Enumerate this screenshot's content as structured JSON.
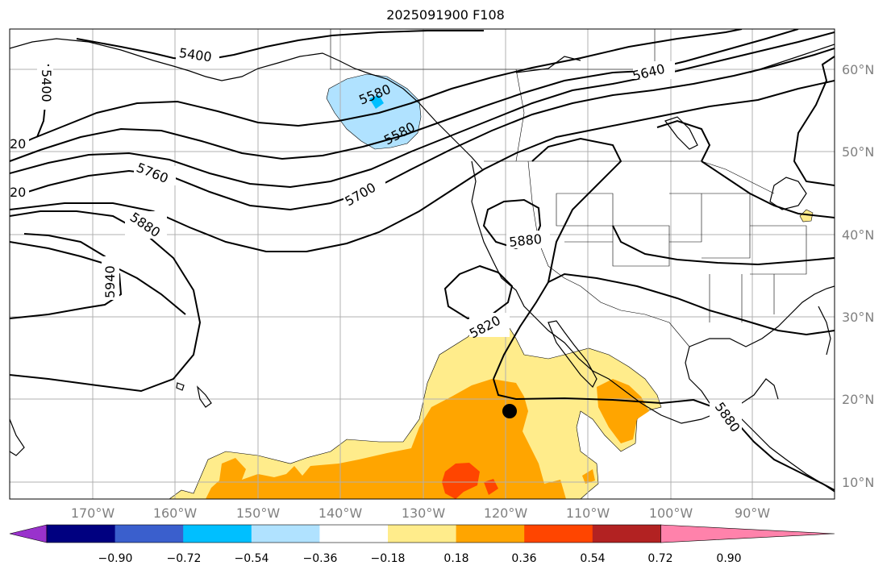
{
  "title": "2025091900 F108",
  "map": {
    "lon_labels": [
      "170°W",
      "160°W",
      "150°W",
      "140°W",
      "130°W",
      "120°W",
      "110°W",
      "100°W",
      "90°W"
    ],
    "lat_labels": [
      "60°N",
      "50°N",
      "40°N",
      "30°N",
      "20°N",
      "10°N"
    ],
    "contour_labels": [
      "5400",
      "5400",
      "5640",
      "5580",
      "5580",
      "20",
      "20",
      "5760",
      "5700",
      "5880",
      "5940",
      "5880",
      "5820",
      "5880"
    ],
    "marker": "storm-center-dot"
  },
  "colorbar": {
    "ticks": [
      "−0.90",
      "−0.72",
      "−0.54",
      "−0.36",
      "−0.18",
      "0.18",
      "0.36",
      "0.54",
      "0.72",
      "0.90"
    ],
    "colors": [
      "#9932CC",
      "#000080",
      "#3A5FCD",
      "#00BFFF",
      "#B0E2FF",
      "#FFFFFF",
      "#FFEC8B",
      "#FFA500",
      "#FF4500",
      "#B22222",
      "#FF82AB"
    ]
  }
}
